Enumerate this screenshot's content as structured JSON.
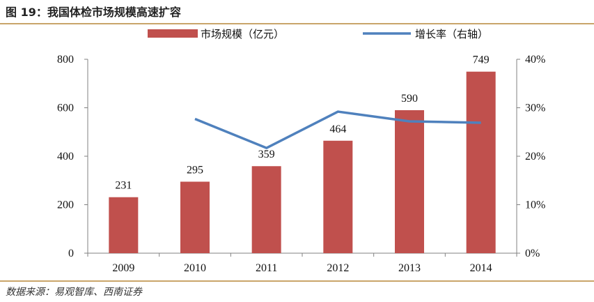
{
  "header": {
    "title": "图 19：我国体检市场规模高速扩容"
  },
  "footer": {
    "source": "数据来源：易观智库、西南证券"
  },
  "colors": {
    "bar": "#c0504d",
    "line": "#4f81bd",
    "rule": "#c9a56a"
  },
  "chart_data": {
    "type": "bar",
    "categories": [
      "2009",
      "2010",
      "2011",
      "2012",
      "2013",
      "2014"
    ],
    "series": [
      {
        "name": "市场规模（亿元）",
        "type": "bar",
        "axis": "left",
        "values": [
          231,
          295,
          359,
          464,
          590,
          749
        ],
        "data_labels": [
          "231",
          "295",
          "359",
          "464",
          "590",
          "749"
        ]
      },
      {
        "name": "增长率（右轴）",
        "type": "line",
        "axis": "right",
        "values": [
          null,
          27.7,
          21.7,
          29.2,
          27.2,
          26.9
        ]
      }
    ],
    "y_left": {
      "range": [
        0,
        800
      ],
      "ticks": [
        "0",
        "200",
        "400",
        "600",
        "800"
      ]
    },
    "y_right": {
      "range": [
        0,
        40
      ],
      "ticks": [
        "0%",
        "10%",
        "20%",
        "30%",
        "40%"
      ]
    },
    "legend_position": "top",
    "grid": false
  }
}
